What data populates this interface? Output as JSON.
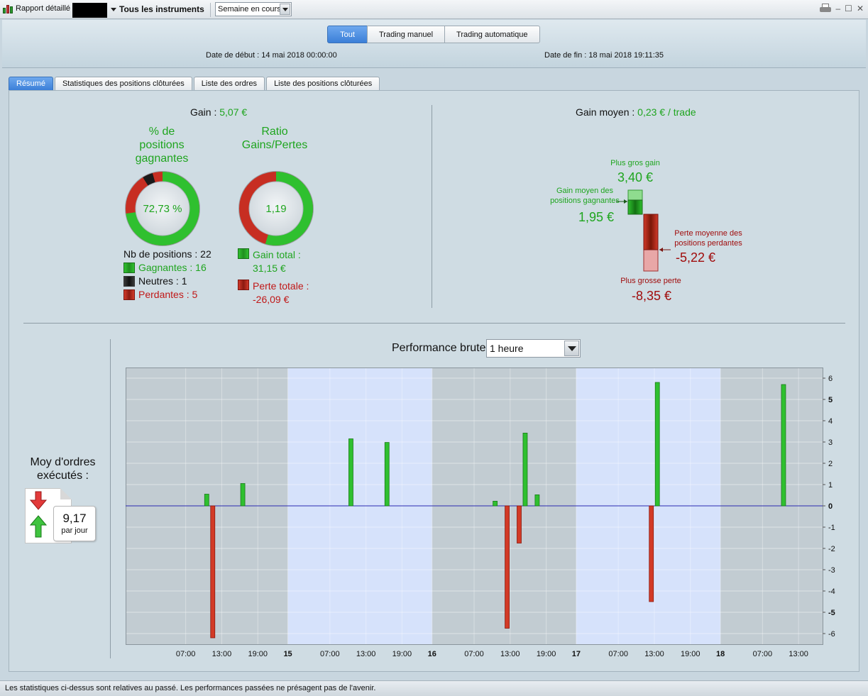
{
  "toolbar": {
    "report_label": "Rapport détaillé",
    "instrument_label": "Tous les instruments",
    "period_value": "Semaine en cours"
  },
  "filter": {
    "segments": [
      "Tout",
      "Trading manuel",
      "Trading automatique"
    ],
    "date_start_label": "Date de début :",
    "date_start_value": "14 mai 2018 00:00:00",
    "date_end_label": "Date de fin :",
    "date_end_value": "18 mai 2018 19:11:35"
  },
  "tabs": [
    "Résumé",
    "Statistiques des positions clôturées",
    "Liste des ordres",
    "Liste des positions clôturées"
  ],
  "summary": {
    "gain_label": "Gain :",
    "gain_value": "5,07 €",
    "winners_title": [
      "% de",
      "positions",
      "gagnantes"
    ],
    "winners_pct": "72,73 %",
    "ratio_title": [
      "Ratio",
      "Gains/Pertes"
    ],
    "ratio_value": "1,19",
    "positions_count_label": "Nb de positions : 22",
    "winning_label": "Gagnantes : 16",
    "neutral_label": "Neutres : 1",
    "losing_label": "Perdantes : 5",
    "total_gain_label": "Gain total :",
    "total_gain_value": "31,15 €",
    "total_loss_label": "Perte totale :",
    "total_loss_value": "-26,09 €",
    "avg_gain_label": "Gain moyen :",
    "avg_gain_value": "0,23 € / trade",
    "biggest_gain_label": "Plus gros gain",
    "biggest_gain_value": "3,40 €",
    "avg_winning_label": [
      "Gain moyen des",
      "positions gagnantes"
    ],
    "avg_winning_value": "1,95 €",
    "avg_losing_label": [
      "Perte moyenne des",
      "positions perdantes"
    ],
    "avg_losing_value": "-5,22 €",
    "biggest_loss_label": "Plus grosse perte",
    "biggest_loss_value": "-8,35 €",
    "colors": {
      "gain": "#1fa51f",
      "loss": "#c01818",
      "neutral": "#222222"
    }
  },
  "orders": {
    "title": [
      "Moy d'ordres",
      "exécutés :"
    ],
    "value": "9,17",
    "unit": "par jour"
  },
  "performance": {
    "title": "Performance brute",
    "interval": "1 heure"
  },
  "chart_data": {
    "type": "bar",
    "y_range": [
      -6.5,
      6.5
    ],
    "y_ticks": [
      6,
      5,
      4,
      3,
      2,
      1,
      0,
      -1,
      -2,
      -3,
      -4,
      -5,
      -6
    ],
    "x_tick_labels": [
      "07:00",
      "13:00",
      "19:00",
      "15",
      "07:00",
      "13:00",
      "19:00",
      "16",
      "07:00",
      "13:00",
      "19:00",
      "17",
      "07:00",
      "13:00",
      "19:00",
      "18",
      "07:00",
      "13:00"
    ],
    "x_ticks_hours": [
      7,
      13,
      19,
      24,
      31,
      37,
      43,
      48,
      55,
      61,
      67,
      72,
      79,
      85,
      91,
      96,
      103,
      109
    ],
    "x_range_hours": [
      -3,
      113
    ],
    "day_bands": [
      {
        "from": -3,
        "to": 24,
        "shade": "grey"
      },
      {
        "from": 24,
        "to": 48,
        "shade": "blue"
      },
      {
        "from": 48,
        "to": 72,
        "shade": "grey"
      },
      {
        "from": 72,
        "to": 96,
        "shade": "blue"
      },
      {
        "from": 96,
        "to": 113,
        "shade": "grey"
      }
    ],
    "bars": [
      {
        "hour": 10.5,
        "value": 0.55
      },
      {
        "hour": 11.5,
        "value": -6.2
      },
      {
        "hour": 16.5,
        "value": 1.05
      },
      {
        "hour": 34.5,
        "value": 3.15
      },
      {
        "hour": 40.5,
        "value": 2.98
      },
      {
        "hour": 58.5,
        "value": 0.22
      },
      {
        "hour": 60.5,
        "value": -5.75
      },
      {
        "hour": 62.5,
        "value": -1.75
      },
      {
        "hour": 63.5,
        "value": 3.42
      },
      {
        "hour": 65.5,
        "value": 0.52
      },
      {
        "hour": 84.5,
        "value": -4.5
      },
      {
        "hour": 85.5,
        "value": 5.8
      },
      {
        "hour": 106.5,
        "value": 5.7
      }
    ],
    "colors": {
      "positive": "#2fc02f",
      "negative": "#d23a26",
      "zero_line": "#2a2ab0",
      "band_grey": "#c2ccd2",
      "band_blue": "#d6e2fb"
    }
  },
  "status_text": "Les statistiques ci-dessus sont relatives au passé. Les performances passées ne présagent pas de l'avenir."
}
